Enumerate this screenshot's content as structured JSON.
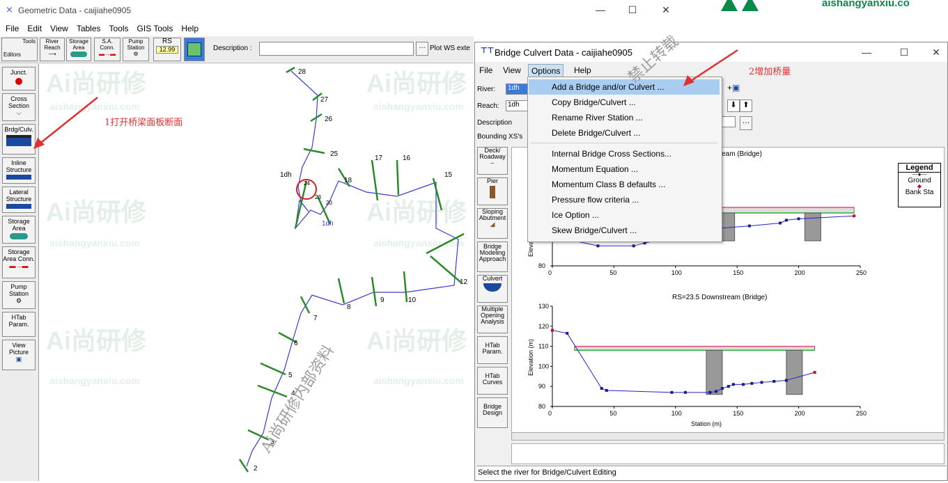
{
  "main_window": {
    "title": "Geometric Data - caijiahe0905",
    "menu": [
      "File",
      "Edit",
      "View",
      "Tables",
      "Tools",
      "GIS Tools",
      "Help"
    ],
    "toolbar": {
      "tools_editors": [
        "Tools",
        "Editors"
      ],
      "river_reach": [
        "River",
        "Reach"
      ],
      "storage_area": [
        "Storage",
        "Area"
      ],
      "sa_conn": [
        "S.A.",
        "Conn."
      ],
      "pump_station": [
        "Pump",
        "Station"
      ],
      "rs": "RS",
      "rs_value": "12.99",
      "description_label": "Description :",
      "description_value": "",
      "plot_ws_label": "Plot WS exte"
    },
    "editors": [
      {
        "key": "junct",
        "label": "Junct."
      },
      {
        "key": "cross_section",
        "label": "Cross Section"
      },
      {
        "key": "bridge_culvert",
        "label": "Brdg/Culv."
      },
      {
        "key": "inline_structure",
        "label": "Inline Structure"
      },
      {
        "key": "lateral_structure",
        "label": "Lateral Structure"
      },
      {
        "key": "storage_area",
        "label": "Storage Area"
      },
      {
        "key": "storage_area_conn",
        "label": "Storage Area Conn."
      },
      {
        "key": "pump_station",
        "label": "Pump Station"
      },
      {
        "key": "htab_param",
        "label": "HTab Param."
      },
      {
        "key": "view_picture",
        "label": "View Picture"
      }
    ],
    "river_name": "1dh",
    "river_name_2": "1dh",
    "station_labels": [
      "28",
      "27",
      "26",
      "25",
      "24",
      "23",
      "20",
      "18",
      "17",
      "16",
      "15",
      "12",
      "10",
      "9",
      "8",
      "7",
      "6",
      "5",
      "4",
      "3",
      "2"
    ]
  },
  "annotations": {
    "step1": "1打开桥梁面板断面",
    "step2": "2增加桥量"
  },
  "watermark": {
    "brand_text": "Ai尚研修",
    "site": "aishangyanxiu.com",
    "header_site": "aishangyanxiu.co",
    "diagonal_1": "Ai尚研修内部资料",
    "diagonal_2": "禁止转载"
  },
  "bridge_dialog": {
    "title": "Bridge Culvert Data - caijiahe0905",
    "menu": [
      "File",
      "View",
      "Options",
      "Help"
    ],
    "river_label": "River:",
    "river_value": "1dh",
    "reach_label": "Reach:",
    "reach_value": "1dh",
    "description_label": "Description",
    "bounding_label": "Bounding XS's",
    "side_buttons": [
      {
        "key": "deck",
        "label": "Deck/ Roadway"
      },
      {
        "key": "pier",
        "label": "Pier"
      },
      {
        "key": "sloping_abutment",
        "label": "Sloping Abutment"
      },
      {
        "key": "bridge_modeling",
        "label": "Bridge Modeling Approach"
      },
      {
        "key": "culvert",
        "label": "Culvert"
      },
      {
        "key": "multiple_opening",
        "label": "Multiple Opening Analysis"
      },
      {
        "key": "htab_param",
        "label": "HTab Param."
      },
      {
        "key": "htab_curves",
        "label": "HTab Curves"
      },
      {
        "key": "bridge_design",
        "label": "Bridge Design"
      }
    ],
    "options_menu": [
      "Add a Bridge and/or Culvert ...",
      "Copy Bridge/Culvert ...",
      "Rename River Station ...",
      "Delete Bridge/Culvert ...",
      "Internal Bridge Cross Sections...",
      "Momentum Equation ...",
      "Momentum Class B defaults ...",
      "Pressure flow criteria ...",
      "Ice Option ...",
      "Skew Bridge/Culvert ..."
    ],
    "status_text": "Select the river for Bridge/Culvert Editing",
    "legend": {
      "title": "Legend",
      "items": [
        "Ground",
        "Bank Sta"
      ]
    },
    "colors": {
      "ground": "#2222cc",
      "bank_sta": "#cc0033",
      "deck": "#888888",
      "highlight": "#a9cdf0"
    }
  },
  "chart_data": [
    {
      "type": "line",
      "title": "stream (Bridge)",
      "xlabel": "",
      "ylabel": "Elevation (m)",
      "xlim": [
        0,
        250
      ],
      "ylim": [
        80,
        100
      ],
      "x_ticks": [
        "0",
        "50",
        "100",
        "150",
        "200",
        "250"
      ],
      "y_ticks": [
        "80"
      ],
      "series": [
        {
          "name": "Ground",
          "x": [
            15,
            37,
            66,
            75,
            130,
            160,
            185,
            190,
            200,
            245
          ],
          "y": [
            89,
            87,
            87,
            88,
            93,
            94,
            95,
            96,
            96.5,
            97.5
          ]
        }
      ]
    },
    {
      "type": "line",
      "title": "RS=23.5  Downstream (Bridge)",
      "xlabel": "Station (m)",
      "ylabel": "Elevation (m)",
      "xlim": [
        0,
        250
      ],
      "ylim": [
        80,
        130
      ],
      "x_ticks": [
        "0",
        "50",
        "100",
        "150",
        "200",
        "250"
      ],
      "y_ticks": [
        "80",
        "90",
        "100",
        "110",
        "120",
        "130"
      ],
      "series": [
        {
          "name": "Ground",
          "x": [
            0,
            12,
            40,
            44,
            97,
            108,
            128,
            133,
            138,
            143,
            147,
            155,
            162,
            170,
            180,
            190,
            213
          ],
          "y": [
            118,
            116.5,
            89,
            88,
            87,
            87,
            87,
            87.5,
            89,
            90,
            91,
            91,
            91.5,
            92,
            92.5,
            93,
            97
          ]
        }
      ],
      "deck": {
        "x_start": 18,
        "x_end": 213,
        "low_chord": 108,
        "high_chord": 110
      }
    }
  ]
}
